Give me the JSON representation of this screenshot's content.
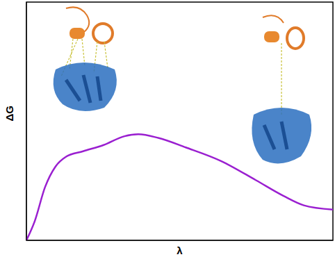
{
  "chart_data": {
    "type": "line",
    "x_label": "λ",
    "y_label": "ΔG",
    "x": [
      0,
      0.027,
      0.061,
      0.095,
      0.128,
      0.185,
      0.252,
      0.32,
      0.365,
      0.43,
      0.52,
      0.635,
      0.748,
      0.838,
      0.905,
      1.0
    ],
    "values": [
      0,
      0.08,
      0.224,
      0.31,
      0.35,
      0.374,
      0.4,
      0.437,
      0.445,
      0.43,
      0.39,
      0.333,
      0.253,
      0.187,
      0.147,
      0.129
    ],
    "color": "#9a1fd0",
    "xlim": [
      0,
      1
    ],
    "ylim": [
      0,
      1
    ],
    "xticks": [],
    "yticks": [],
    "tick_labels": false,
    "grid": false
  }
}
